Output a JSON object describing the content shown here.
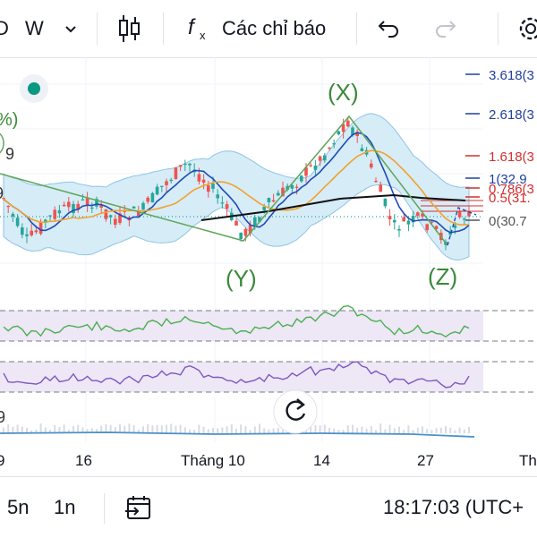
{
  "toolbar": {
    "interval_partial": "D",
    "interval_week": "W",
    "indicators_label": "Các chỉ báo"
  },
  "chart": {
    "wave_labels": {
      "x": "(X)",
      "y": "(Y)",
      "z": "(Z)"
    },
    "left_edge_labels": [
      "%)",
      "9",
      "9"
    ],
    "fib_levels": [
      {
        "label": "3.618(3",
        "color": "#1f3f9f"
      },
      {
        "label": "2.618(3",
        "color": "#1f3f9f"
      },
      {
        "label": "1.618(3",
        "color": "#d32f2f"
      },
      {
        "label": "1(32.9",
        "color": "#1f3f9f"
      },
      {
        "label": "0.786(3",
        "color": "#d32f2f"
      },
      {
        "label": "0.5(31.",
        "color": "#d32f2f"
      },
      {
        "label": "0(30.7",
        "color": "#555555"
      }
    ],
    "x_axis": [
      "9",
      "16",
      "Tháng 10",
      "14",
      "27",
      "Th"
    ],
    "volume_label": "9"
  },
  "colors": {
    "up": "#26a69a",
    "down": "#ef5350",
    "fib_blue": "#1f3f9f",
    "green_line": "#2e7d32",
    "rsi_purple": "#7e57c2",
    "band_fill": "#d6ecf7"
  },
  "bottombar": {
    "range_5n": "5n",
    "range_1n": "1n",
    "clock": "18:17:03 (UTC+"
  }
}
